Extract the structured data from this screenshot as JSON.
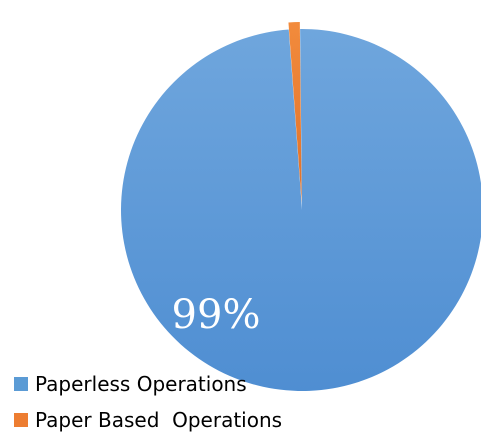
{
  "chart_data": {
    "type": "pie",
    "categories": [
      "Paperless Operations",
      "Paper Based  Operations"
    ],
    "values": [
      99,
      1
    ],
    "colors": [
      "#5B9BD5",
      "#ED7D31"
    ],
    "data_labels": [
      "99%",
      ""
    ],
    "title": "",
    "legend_position": "bottom-left"
  }
}
